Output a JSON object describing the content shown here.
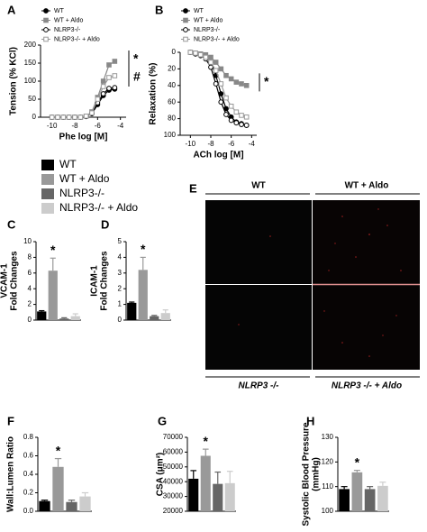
{
  "chart_data": [
    {
      "type": "line",
      "panel": "A",
      "xlabel": "Phe log [M]",
      "ylabel": "Tension (% KCl)",
      "xlim": [
        -11,
        -3.5
      ],
      "xticks": [
        -10,
        -8,
        -6,
        -4
      ],
      "ylim": [
        0,
        200
      ],
      "yticks": [
        0,
        50,
        100,
        150,
        200
      ],
      "annotations": [
        "*",
        "#"
      ],
      "series": [
        {
          "name": "WT",
          "color": "#000000",
          "marker": "circle",
          "filled": true,
          "x": [
            -10,
            -9.5,
            -9,
            -8.5,
            -8,
            -7.5,
            -7,
            -6.5,
            -6,
            -5.5,
            -5,
            -4.5
          ],
          "values": [
            0,
            0,
            0,
            0,
            0,
            0,
            2,
            10,
            35,
            60,
            75,
            78
          ]
        },
        {
          "name": "WT + Aldo",
          "color": "#888888",
          "marker": "square",
          "filled": true,
          "x": [
            -10,
            -9.5,
            -9,
            -8.5,
            -8,
            -7.5,
            -7,
            -6.5,
            -6,
            -5.5,
            -5,
            -4.5
          ],
          "values": [
            0,
            0,
            0,
            0,
            0,
            0,
            3,
            15,
            55,
            100,
            145,
            155
          ]
        },
        {
          "name": "NLRP3-/-",
          "color": "#000000",
          "marker": "circle",
          "filled": false,
          "x": [
            -10,
            -9.5,
            -9,
            -8.5,
            -8,
            -7.5,
            -7,
            -6.5,
            -6,
            -5.5,
            -5,
            -4.5
          ],
          "values": [
            0,
            0,
            0,
            0,
            0,
            0,
            2,
            10,
            40,
            65,
            80,
            82
          ]
        },
        {
          "name": "NLRP3-/- + Aldo",
          "color": "#999999",
          "marker": "square",
          "filled": false,
          "x": [
            -10,
            -9.5,
            -9,
            -8.5,
            -8,
            -7.5,
            -7,
            -6.5,
            -6,
            -5.5,
            -5,
            -4.5
          ],
          "values": [
            0,
            0,
            0,
            0,
            0,
            0,
            3,
            12,
            50,
            85,
            110,
            115
          ]
        }
      ]
    },
    {
      "type": "line",
      "panel": "B",
      "xlabel": "ACh log [M]",
      "ylabel": "Relaxation (%)",
      "xlim": [
        -11,
        -3.5
      ],
      "xticks": [
        -10,
        -8,
        -6,
        -4
      ],
      "ylim": [
        100,
        0
      ],
      "yticks": [
        0,
        20,
        40,
        60,
        80,
        100
      ],
      "annotations": [
        "*"
      ],
      "series": [
        {
          "name": "WT",
          "color": "#000000",
          "marker": "circle",
          "filled": true,
          "x": [
            -10,
            -9.5,
            -9,
            -8.5,
            -8,
            -7.5,
            -7,
            -6.5,
            -6,
            -5.5,
            -5,
            -4.5
          ],
          "values": [
            0,
            1,
            3,
            6,
            12,
            28,
            50,
            68,
            78,
            84,
            86,
            88
          ]
        },
        {
          "name": "WT + Aldo",
          "color": "#888888",
          "marker": "square",
          "filled": true,
          "x": [
            -10,
            -9.5,
            -9,
            -8.5,
            -8,
            -7.5,
            -7,
            -6.5,
            -6,
            -5.5,
            -5,
            -4.5
          ],
          "values": [
            0,
            1,
            2,
            3,
            6,
            12,
            20,
            28,
            32,
            36,
            38,
            40
          ]
        },
        {
          "name": "NLRP3-/-",
          "color": "#000000",
          "marker": "circle",
          "filled": false,
          "x": [
            -10,
            -9.5,
            -9,
            -8.5,
            -8,
            -7.5,
            -7,
            -6.5,
            -6,
            -5.5,
            -5,
            -4.5
          ],
          "values": [
            0,
            2,
            4,
            8,
            18,
            38,
            60,
            75,
            82,
            85,
            87,
            88
          ]
        },
        {
          "name": "NLRP3-/- + Aldo",
          "color": "#999999",
          "marker": "square",
          "filled": false,
          "x": [
            -10,
            -9.5,
            -9,
            -8.5,
            -8,
            -7.5,
            -7,
            -6.5,
            -6,
            -5.5,
            -5,
            -4.5
          ],
          "values": [
            0,
            1,
            3,
            6,
            12,
            22,
            38,
            55,
            65,
            72,
            76,
            78
          ]
        }
      ]
    },
    {
      "type": "bar",
      "panel": "C",
      "ylabel": [
        "VCAM-1",
        "Fold Changes"
      ],
      "ylim": [
        0,
        10
      ],
      "yticks": [
        0,
        2,
        4,
        6,
        8,
        10
      ],
      "categories": [
        null,
        null,
        null,
        null
      ],
      "values": [
        1.1,
        6.3,
        0.2,
        0.5
      ],
      "errors": [
        0.1,
        1.6,
        0.1,
        0.3
      ],
      "annotations": [
        "*"
      ]
    },
    {
      "type": "bar",
      "panel": "D",
      "ylabel": [
        "ICAM-1",
        "Fold Changes"
      ],
      "ylim": [
        0,
        5
      ],
      "yticks": [
        0,
        1,
        2,
        3,
        4,
        5
      ],
      "categories": [
        null,
        null,
        null,
        null
      ],
      "values": [
        1.1,
        3.2,
        0.25,
        0.45
      ],
      "errors": [
        0.05,
        0.8,
        0.05,
        0.2
      ],
      "annotations": [
        "*"
      ]
    },
    {
      "type": "image",
      "panel": "E",
      "column_labels": [
        "WT",
        "WT + Aldo"
      ],
      "row_labels": [
        "NLRP3 -/-",
        "NLRP3 -/- + Aldo"
      ]
    },
    {
      "type": "bar",
      "panel": "F",
      "ylabel": [
        "Wall:Lumen Ratio"
      ],
      "ylim": [
        0,
        0.8
      ],
      "yticks": [
        {
          "value": 0,
          "label": "0.0"
        },
        0.2,
        0.4,
        0.6,
        0.8
      ],
      "categories": [
        null,
        null,
        null,
        null
      ],
      "values": [
        0.11,
        0.48,
        0.1,
        0.16
      ],
      "errors": [
        0.01,
        0.09,
        0.02,
        0.04
      ],
      "annotations": [
        "*"
      ]
    },
    {
      "type": "bar",
      "panel": "G",
      "ylabel": [
        "CSA (μm²)"
      ],
      "ylim": [
        20000,
        70000
      ],
      "yticks": [
        20000,
        30000,
        40000,
        50000,
        60000,
        70000
      ],
      "categories": [
        null,
        null,
        null,
        null
      ],
      "values": [
        42000,
        57500,
        38500,
        39000
      ],
      "errors": [
        5500,
        4500,
        8000,
        8000
      ],
      "annotations": [
        "*"
      ]
    },
    {
      "type": "bar",
      "panel": "H",
      "ylabel": [
        "Systolic Blood Pressure",
        "(mmHg)"
      ],
      "ylim": [
        100,
        130
      ],
      "yticks": [
        100,
        110,
        120,
        130
      ],
      "categories": [
        null,
        null,
        null,
        null
      ],
      "values": [
        109,
        115.8,
        109,
        110.3
      ],
      "errors": [
        1,
        0.8,
        1,
        1.5
      ],
      "annotations": [
        "*"
      ]
    }
  ],
  "legend": [
    {
      "name": "WT",
      "color": "#000000"
    },
    {
      "name": "WT + Aldo",
      "color": "#999999"
    },
    {
      "name": "NLRP3-/-",
      "color": "#666666"
    },
    {
      "name": "NLRP3-/- + Aldo",
      "color": "#cccccc"
    }
  ]
}
